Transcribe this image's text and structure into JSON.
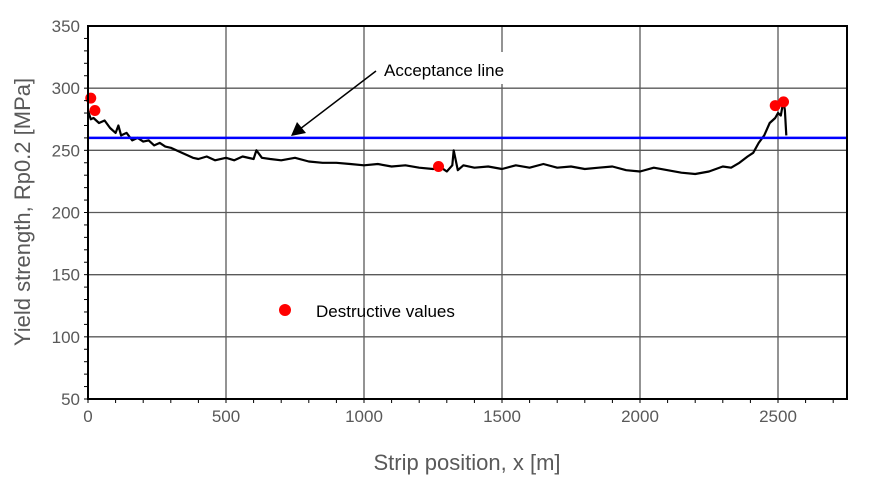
{
  "chart_data": {
    "type": "line",
    "xlabel": "Strip position, x [m]",
    "ylabel": "Yield strength, Rp0.2 [MPa]",
    "xlim": [
      0,
      2750
    ],
    "ylim": [
      50,
      350
    ],
    "xticks": [
      0,
      500,
      1000,
      1500,
      2000,
      2500
    ],
    "yticks": [
      50,
      100,
      150,
      200,
      250,
      300,
      350
    ],
    "grid": true,
    "series": [
      {
        "type": "line",
        "color": "#000000",
        "x": [
          0,
          10,
          20,
          40,
          60,
          80,
          100,
          110,
          120,
          140,
          160,
          180,
          200,
          220,
          240,
          260,
          280,
          300,
          320,
          340,
          360,
          380,
          400,
          430,
          460,
          500,
          530,
          560,
          600,
          610,
          630,
          660,
          700,
          750,
          800,
          850,
          900,
          950,
          1000,
          1050,
          1100,
          1150,
          1200,
          1250,
          1280,
          1300,
          1320,
          1325,
          1340,
          1360,
          1400,
          1450,
          1500,
          1550,
          1600,
          1650,
          1700,
          1750,
          1800,
          1850,
          1900,
          1950,
          2000,
          2050,
          2100,
          2150,
          2200,
          2250,
          2300,
          2330,
          2360,
          2390,
          2410,
          2430,
          2450,
          2470,
          2490,
          2500,
          2510,
          2520,
          2525,
          2530
        ],
        "y": [
          282,
          275,
          276,
          272,
          274,
          268,
          264,
          270,
          262,
          264,
          258,
          260,
          257,
          258,
          254,
          256,
          253,
          252,
          250,
          248,
          246,
          244,
          243,
          245,
          242,
          244,
          242,
          245,
          243,
          250,
          244,
          243,
          242,
          244,
          241,
          240,
          240,
          239,
          238,
          239,
          237,
          238,
          236,
          235,
          236,
          233,
          238,
          250,
          234,
          238,
          236,
          237,
          235,
          238,
          236,
          239,
          236,
          237,
          235,
          236,
          237,
          234,
          233,
          236,
          234,
          232,
          231,
          233,
          237,
          236,
          240,
          245,
          248,
          256,
          262,
          272,
          276,
          280,
          278,
          290,
          282,
          262
        ]
      },
      {
        "name": "Acceptance line",
        "type": "hline",
        "color": "#0000FF",
        "y": 260
      },
      {
        "name": "Destructive values",
        "type": "scatter",
        "color": "#FF0000",
        "x": [
          10,
          25,
          1270,
          2490,
          2520
        ],
        "y": [
          292,
          282,
          237,
          286,
          289
        ]
      }
    ],
    "annotations": [
      {
        "text": "Acceptance line",
        "arrow_to": "acceptance-line"
      }
    ],
    "legend": {
      "entries": [
        "Destructive values"
      ],
      "placement": "center-left"
    }
  }
}
